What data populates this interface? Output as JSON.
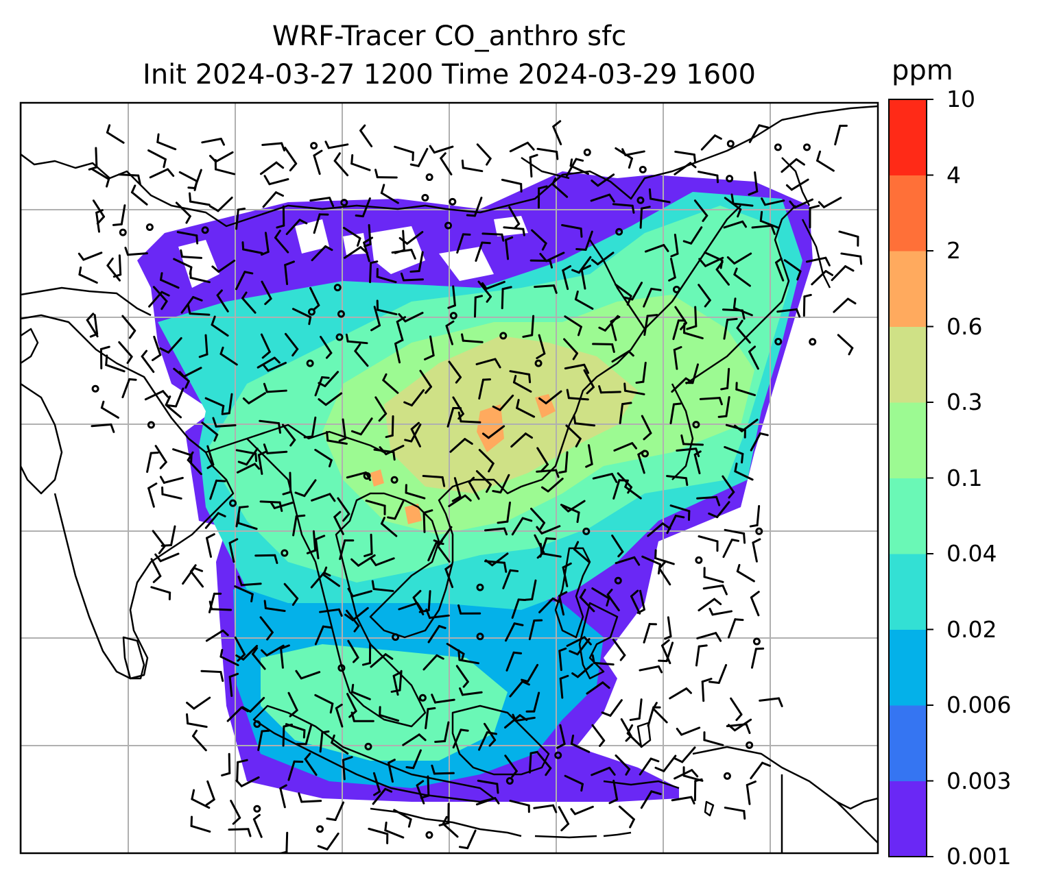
{
  "title_line1": "WRF-Tracer CO_anthro sfc",
  "title_line2": "Init 2024-03-27 1200 Time 2024-03-29 1600",
  "colorbar": {
    "unit": "ppm",
    "levels": [
      "0.001",
      "0.003",
      "0.006",
      "0.02",
      "0.04",
      "0.1",
      "0.3",
      "0.6",
      "2",
      "4",
      "10"
    ],
    "colors": [
      "#6a28f5",
      "#3575f2",
      "#04b1e9",
      "#33e0d4",
      "#6af8b6",
      "#9cfa92",
      "#cfe186",
      "#ffaa5e",
      "#ff7038",
      "#ff2a17"
    ]
  },
  "map": {
    "region": "South / Southeast / East Asia",
    "gridlines": true,
    "overlay": "wind-barbs",
    "coastlines": true
  }
}
